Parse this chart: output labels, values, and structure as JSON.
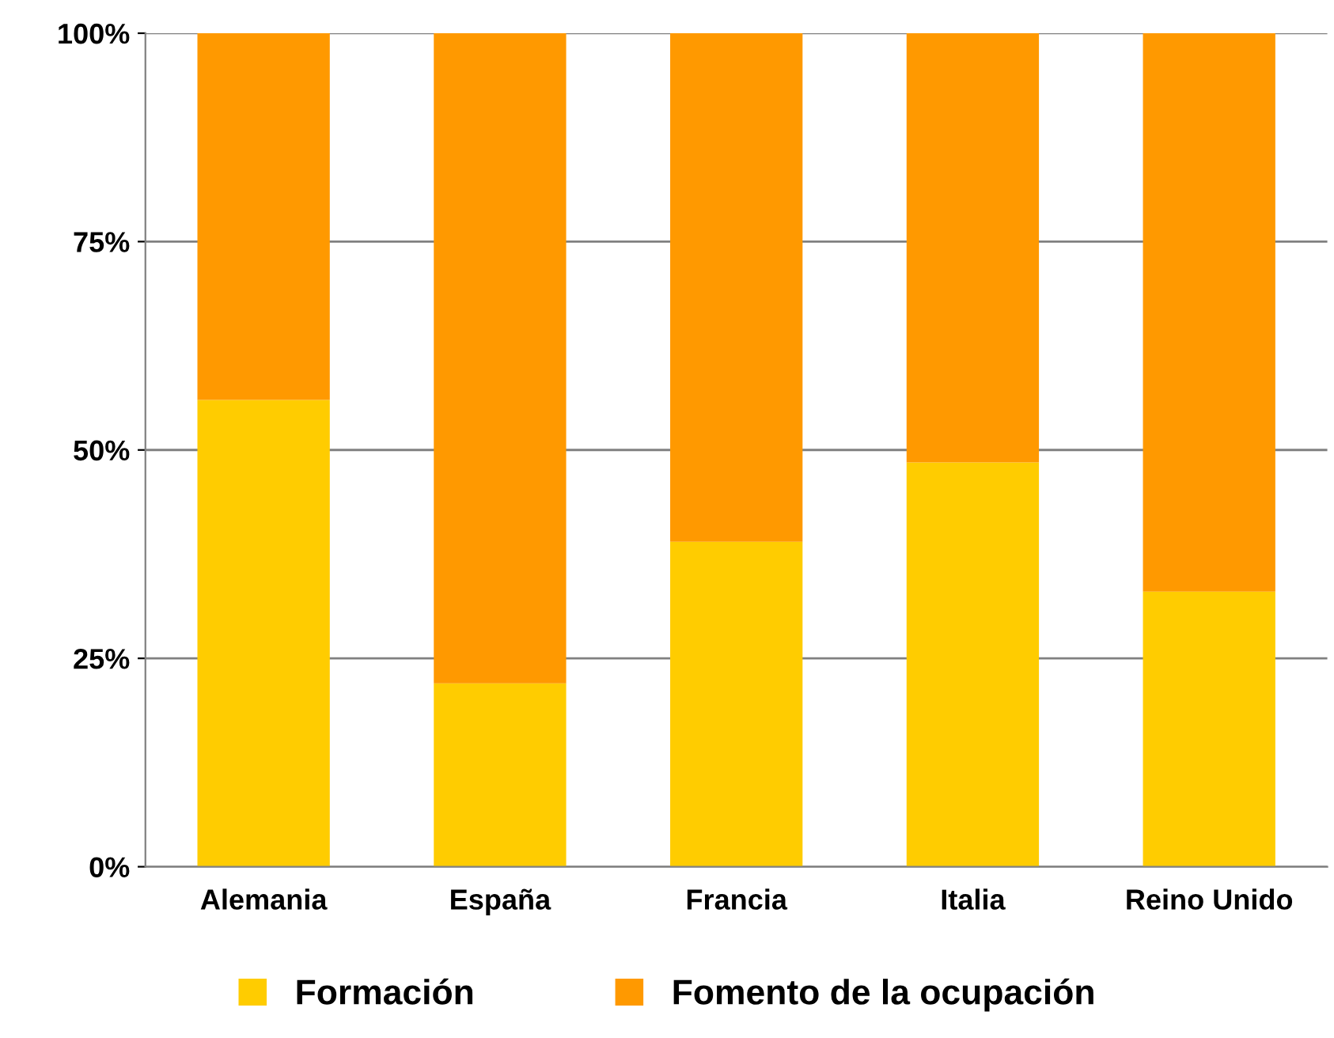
{
  "chart_data": {
    "type": "bar",
    "stacked": true,
    "categories": [
      "Alemania",
      "España",
      "Francia",
      "Italia",
      "Reino Unido"
    ],
    "series": [
      {
        "name": "Formación",
        "color": "#ffcc00",
        "values": [
          56,
          22,
          39,
          48.5,
          33
        ]
      },
      {
        "name": "Fomento de la ocupación",
        "color": "#ff9900",
        "values": [
          44,
          78,
          61,
          51.5,
          67
        ]
      }
    ],
    "ylim": [
      0,
      100
    ],
    "yticks": [
      {
        "value": 0,
        "label": "0%"
      },
      {
        "value": 25,
        "label": "25%"
      },
      {
        "value": 50,
        "label": "50%"
      },
      {
        "value": 75,
        "label": "75%"
      },
      {
        "value": 100,
        "label": "100%"
      }
    ],
    "grid": "y",
    "legend": "bottom"
  }
}
